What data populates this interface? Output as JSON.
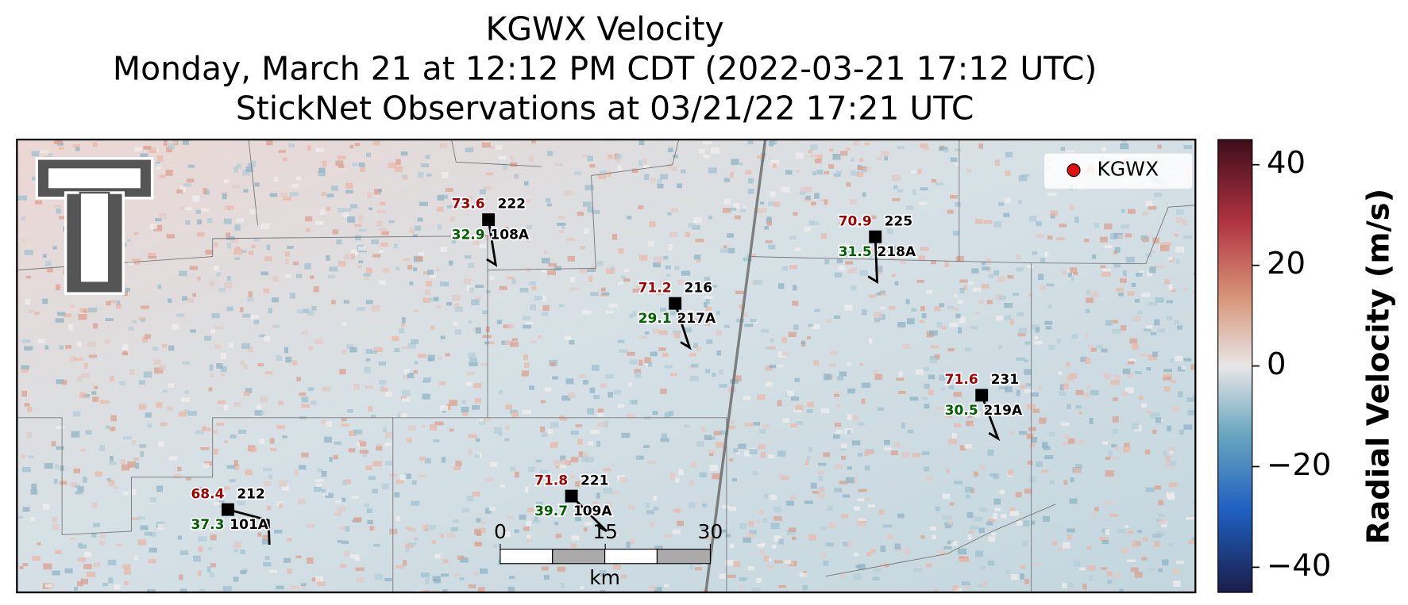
{
  "title": {
    "line1": "KGWX Velocity",
    "line2": "Monday, March 21 at 12:12 PM CDT (2022-03-21 17:12 UTC)",
    "line3": "StickNet Observations at 03/21/22 17:21 UTC"
  },
  "legend": {
    "label": "KGWX"
  },
  "stations": [
    {
      "id": "108A",
      "temperature": "73.6",
      "dewpoint": "32.9",
      "pressure": "222"
    },
    {
      "id": "217A",
      "temperature": "71.2",
      "dewpoint": "29.1",
      "pressure": "216"
    },
    {
      "id": "218A",
      "temperature": "70.9",
      "dewpoint": "31.5",
      "pressure": "225"
    },
    {
      "id": "219A",
      "temperature": "71.6",
      "dewpoint": "30.5",
      "pressure": "231"
    },
    {
      "id": "109A",
      "temperature": "71.8",
      "dewpoint": "39.7",
      "pressure": "221"
    },
    {
      "id": "101A",
      "temperature": "68.4",
      "dewpoint": "37.3",
      "pressure": "212"
    }
  ],
  "scalebar": {
    "ticks": [
      0,
      15,
      30
    ],
    "unit": "km"
  },
  "colorbar": {
    "label": "Radial Velocity (m/s)",
    "lim": [
      -45,
      45
    ],
    "ticks": [
      {
        "value": -40,
        "label": "−40"
      },
      {
        "value": -20,
        "label": "−20"
      },
      0,
      20,
      40
    ]
  }
}
